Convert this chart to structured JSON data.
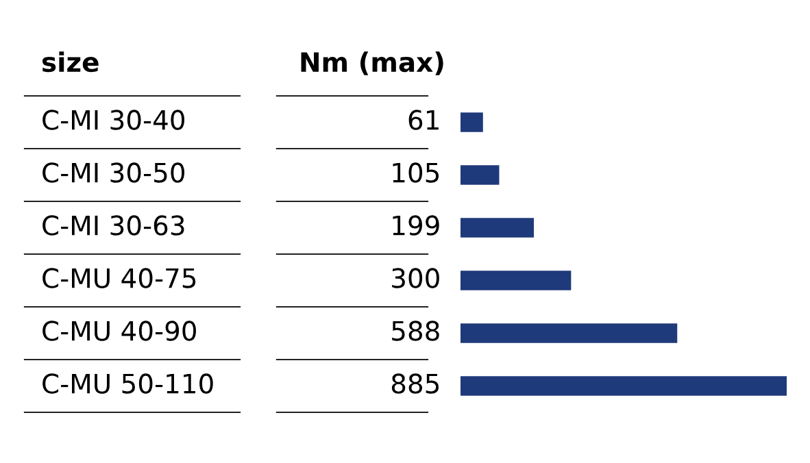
{
  "chart_data": {
    "type": "bar",
    "orientation": "horizontal",
    "ylabel": "size",
    "xlabel": "Nm (max)",
    "categories": [
      "C-MI 30-40",
      "C-MI 30-50",
      "C-MI 30-63",
      "C-MU 40-75",
      "C-MU 40-90",
      "C-MU 50-110"
    ],
    "values": [
      61,
      105,
      199,
      300,
      588,
      885
    ],
    "color": "#1f3a7a",
    "data_labels": true
  }
}
